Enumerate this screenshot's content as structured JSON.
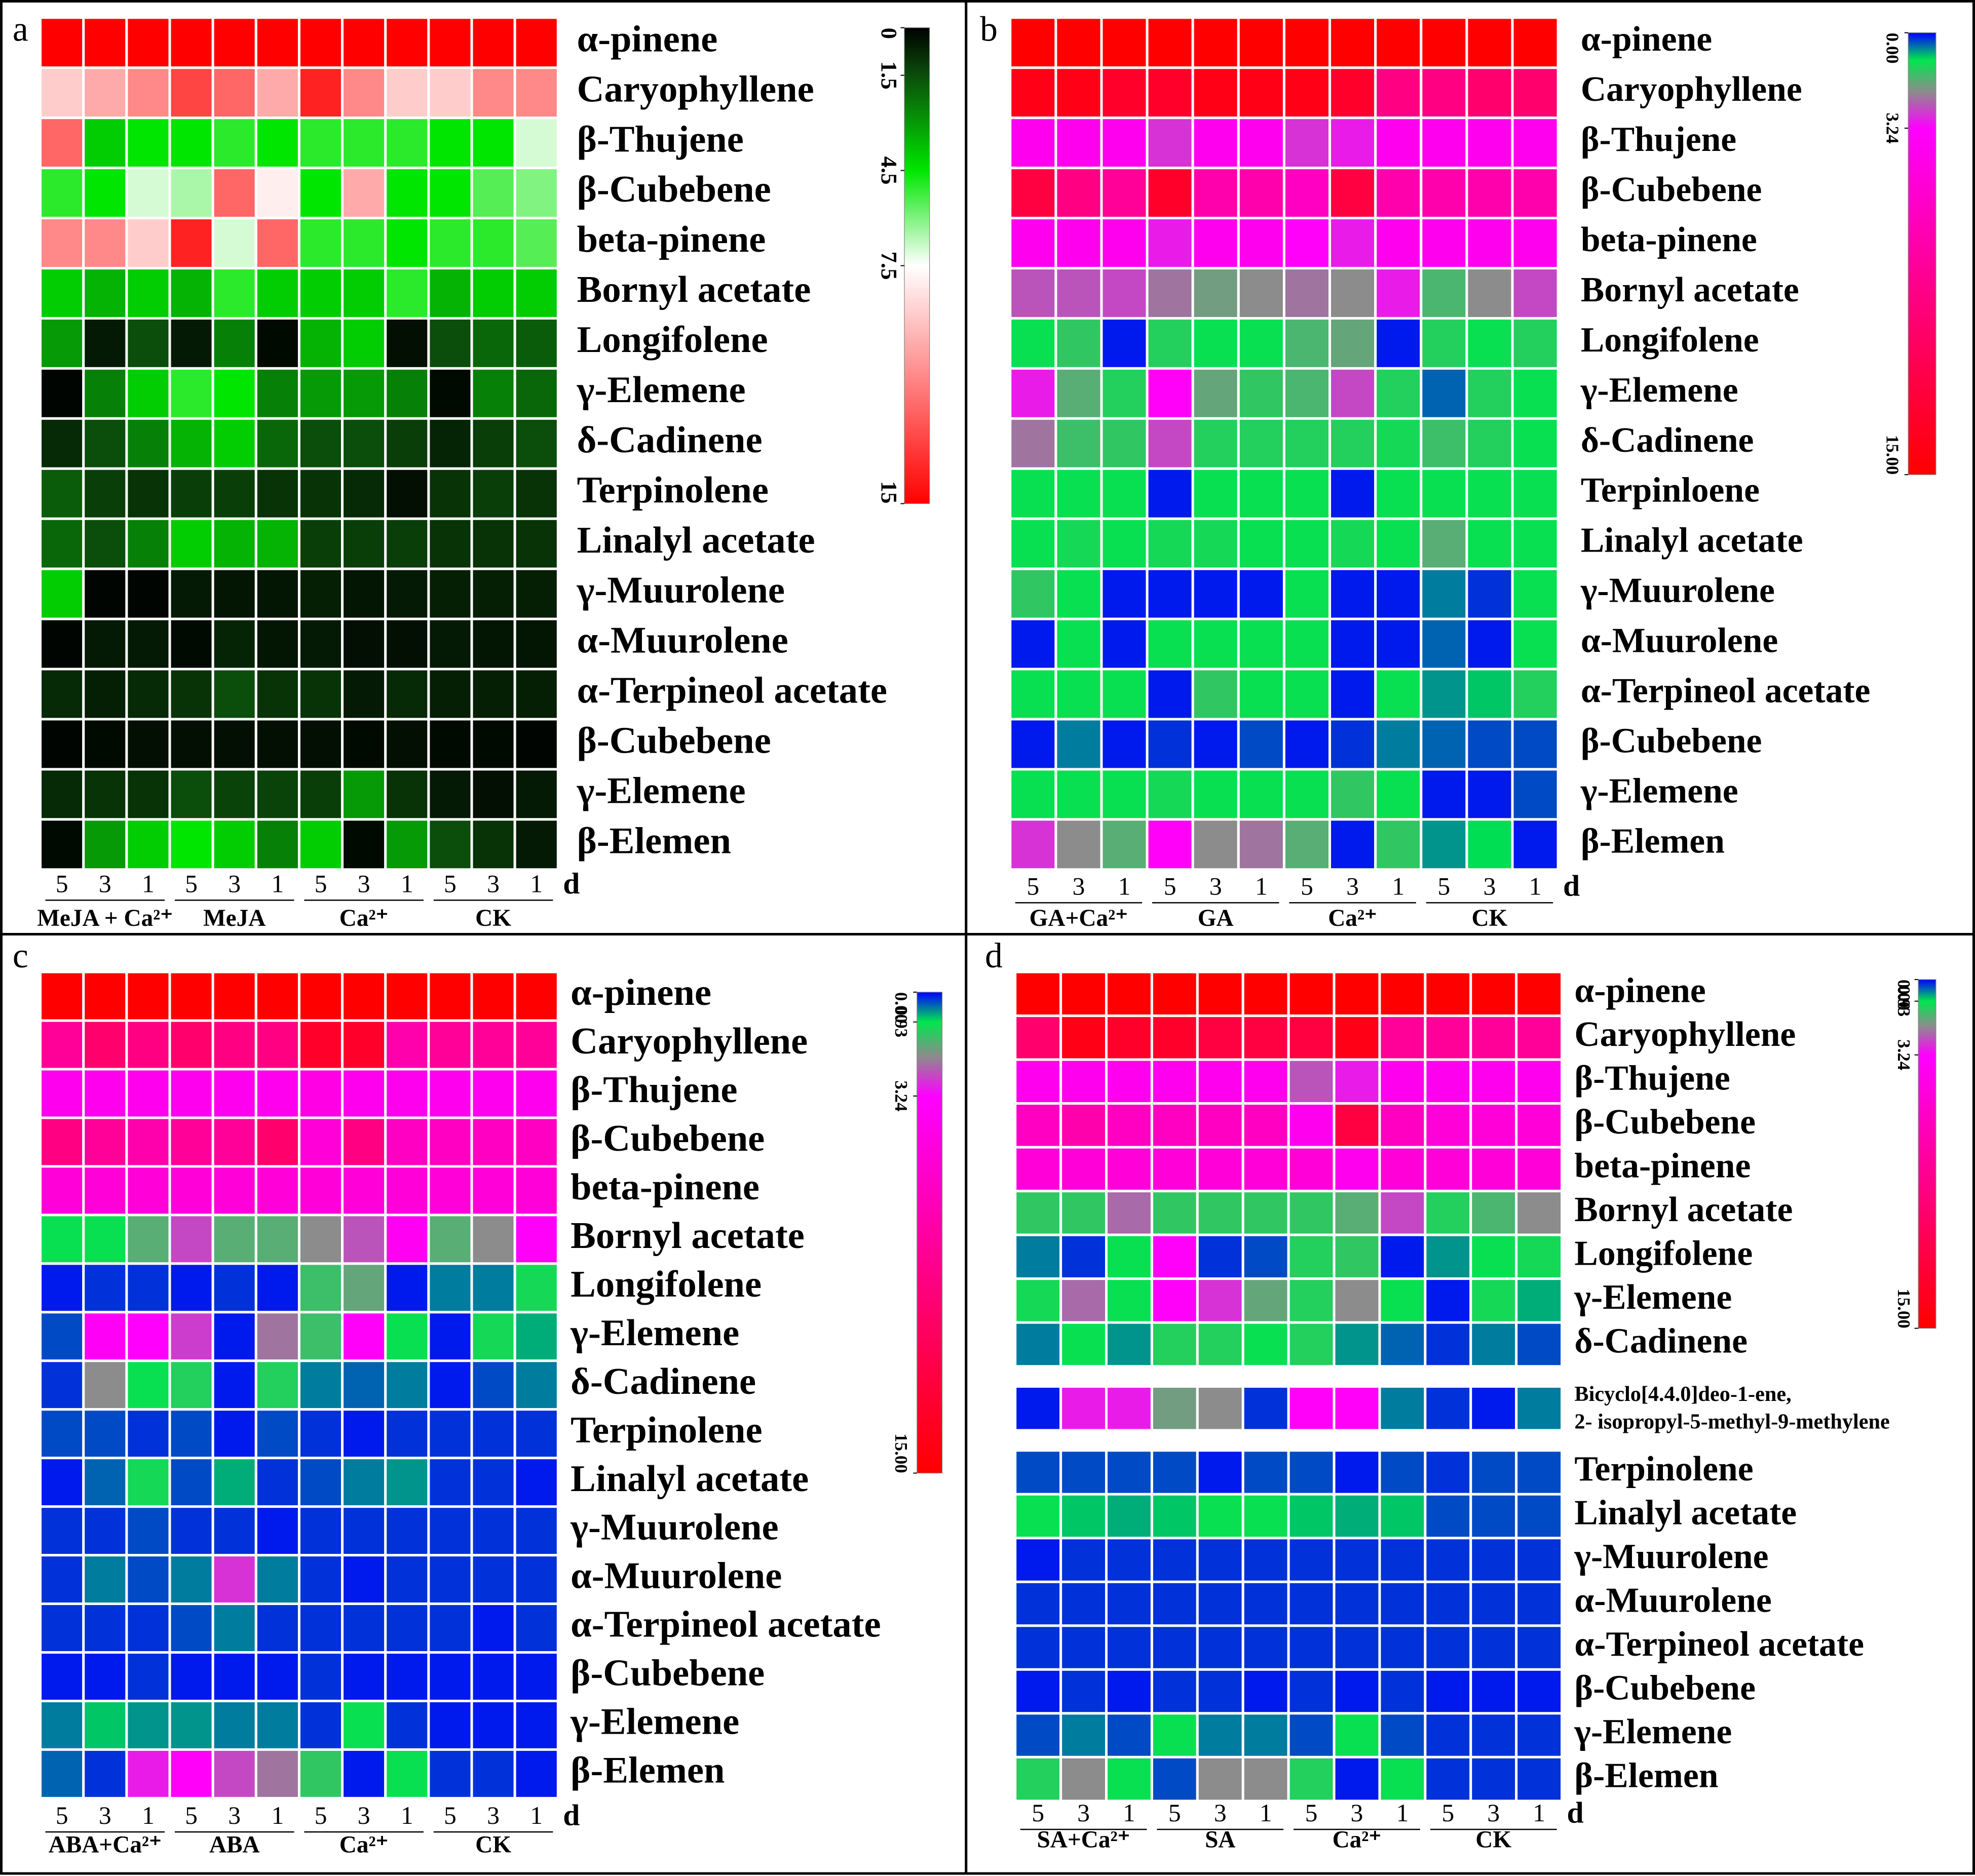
{
  "chart_data": [
    {
      "type": "heatmap",
      "panel_label": "a",
      "row_labels": [
        "α-pinene",
        "Caryophyllene",
        "β-Thujene",
        "β-Cubebene",
        "beta-pinene",
        "Bornyl acetate",
        "Longifolene",
        "γ-Elemene",
        "δ-Cadinene",
        "Terpinolene",
        "Linalyl acetate",
        "γ-Muurolene",
        "α-Muurolene",
        "α-Terpineol acetate",
        "β-Cubebene",
        "γ-Elemene",
        "β-Elemen"
      ],
      "columns": [
        "5",
        "3",
        "1",
        "5",
        "3",
        "1",
        "5",
        "3",
        "1",
        "5",
        "3",
        "1"
      ],
      "x_unit": "d",
      "groups": [
        "MeJA + Ca²⁺",
        "MeJA",
        "Ca²⁺",
        "CK"
      ],
      "values": [
        [
          15,
          15,
          15,
          15,
          15,
          15,
          15,
          15,
          15,
          15,
          15,
          15
        ],
        [
          9,
          10,
          11,
          13,
          12,
          10,
          14,
          11,
          9,
          9,
          11,
          11
        ],
        [
          12,
          4,
          4.5,
          4.5,
          5,
          4.5,
          5,
          5,
          5,
          4.5,
          4.5,
          7
        ],
        [
          5,
          4.5,
          7,
          6.5,
          12,
          8,
          4.5,
          10,
          4.5,
          4.5,
          5.5,
          6
        ],
        [
          11,
          11,
          9,
          14,
          7,
          12,
          5,
          5,
          4.5,
          5,
          5,
          5.5
        ],
        [
          4,
          3.5,
          4,
          3.5,
          5,
          4,
          4,
          4,
          5,
          3.5,
          4,
          4
        ],
        [
          3,
          0.5,
          1.5,
          0.5,
          2.5,
          0.2,
          3.5,
          4,
          0.3,
          1.5,
          2,
          1.8
        ],
        [
          0.1,
          2.5,
          4,
          5,
          4.5,
          2.5,
          3,
          3,
          2.5,
          0.2,
          2.5,
          2
        ],
        [
          0.8,
          1.5,
          2.5,
          3.5,
          4,
          2,
          1.5,
          1.5,
          1.2,
          0.7,
          1.2,
          1.5
        ],
        [
          1.8,
          1.2,
          1,
          1.2,
          1.2,
          1,
          1,
          0.8,
          0.3,
          1,
          1.2,
          1
        ],
        [
          2,
          1.5,
          2.5,
          4,
          3.5,
          3.5,
          1.2,
          1.2,
          1.2,
          1,
          1,
          1
        ],
        [
          4,
          0.1,
          0.1,
          0.5,
          0.4,
          0.4,
          0.6,
          0.4,
          0.5,
          0.6,
          0.6,
          0.6
        ],
        [
          0.1,
          0.5,
          0.5,
          0.2,
          0.7,
          0.4,
          0.5,
          0.3,
          0.3,
          0.5,
          0.4,
          0.4
        ],
        [
          0.8,
          0.6,
          0.8,
          1,
          1.5,
          1,
          1,
          0.5,
          0.8,
          0.6,
          0.6,
          0.6
        ],
        [
          0.1,
          0.2,
          0.3,
          0.3,
          0.3,
          0.3,
          0.3,
          0.2,
          0.3,
          0.2,
          0.2,
          0.1
        ],
        [
          0.8,
          1,
          1,
          1.5,
          1.3,
          1.3,
          1.2,
          3,
          1,
          0.5,
          0.3,
          0.5
        ],
        [
          0.2,
          3,
          4,
          4.5,
          4,
          2.5,
          4,
          0.2,
          3,
          1.5,
          1,
          0.5
        ]
      ],
      "colorbar_lim": [
        0,
        15
      ],
      "colorbar_ticks": [
        0,
        1.5,
        4.5,
        7.5,
        15
      ],
      "colorscale": [
        {
          "value": 0,
          "color": "#000000"
        },
        {
          "value": 1.5,
          "color": "#0b4d0b"
        },
        {
          "value": 4.5,
          "color": "#00e600"
        },
        {
          "value": 7.5,
          "color": "#ffffff"
        },
        {
          "value": 15,
          "color": "#ff0000"
        }
      ]
    },
    {
      "type": "heatmap",
      "panel_label": "b",
      "row_labels": [
        "α-pinene",
        "Caryophyllene",
        "β-Thujene",
        "β-Cubebene",
        "beta-pinene",
        "Bornyl acetate",
        "Longifolene",
        "γ-Elemene",
        "δ-Cadinene",
        "Terpinloene",
        "Linalyl acetate",
        "γ-Muurolene",
        "α-Muurolene",
        "α-Terpineol acetate",
        "β-Cubebene",
        "γ-Elemene",
        "β-Elemen"
      ],
      "columns": [
        "5",
        "3",
        "1",
        "5",
        "3",
        "1",
        "5",
        "3",
        "1",
        "5",
        "3",
        "1"
      ],
      "x_unit": "d",
      "groups": [
        "GA+Ca²⁺",
        "GA",
        "Ca²⁺",
        "CK"
      ],
      "values": [
        [
          15,
          15,
          15,
          15,
          15,
          15,
          15,
          15,
          15,
          15,
          15,
          15
        ],
        [
          14,
          14,
          13,
          13,
          14,
          14,
          14,
          13,
          9,
          9,
          10,
          10
        ],
        [
          4,
          4,
          4,
          2.8,
          4,
          4,
          2.8,
          3,
          4,
          4,
          4,
          4
        ],
        [
          12,
          9,
          8,
          13,
          7,
          7,
          6,
          12,
          7,
          7,
          7,
          7
        ],
        [
          4,
          4,
          4,
          3,
          4,
          4,
          3.5,
          3,
          4,
          4,
          4,
          4
        ],
        [
          2.5,
          2.5,
          2.6,
          2.2,
          1.8,
          2,
          2.2,
          2,
          3,
          1.5,
          2,
          2.6
        ],
        [
          1,
          1.3,
          0.1,
          1.2,
          1,
          1,
          1.5,
          1.7,
          0.1,
          1.2,
          1,
          1.2
        ],
        [
          3,
          1.6,
          1.2,
          3.5,
          1.7,
          1.3,
          1.5,
          2.6,
          1.2,
          0.4,
          1.2,
          1
        ],
        [
          2.2,
          1.4,
          1.3,
          2.6,
          1.2,
          1.2,
          1.2,
          1.2,
          1.1,
          1.4,
          1.2,
          1
        ],
        [
          1,
          1,
          1,
          0.1,
          1,
          1,
          1,
          0.1,
          1,
          1,
          1,
          1
        ],
        [
          1,
          1.1,
          1,
          1.1,
          1.1,
          1,
          1,
          1.1,
          1,
          1.6,
          1,
          1
        ],
        [
          1.3,
          1,
          0.1,
          0.1,
          0.1,
          0.1,
          1,
          0.1,
          0.1,
          0.5,
          0.2,
          1
        ],
        [
          0.1,
          1,
          0.1,
          1,
          1,
          1,
          1,
          0.1,
          0.1,
          0.4,
          0.1,
          1
        ],
        [
          1,
          1,
          1,
          0.1,
          1.3,
          1,
          1,
          0.1,
          1,
          0.6,
          0.8,
          1.2
        ],
        [
          0.1,
          0.5,
          0.1,
          0.2,
          0.1,
          0.3,
          0.1,
          0.2,
          0.5,
          0.4,
          0.3,
          0.3
        ],
        [
          1,
          1,
          1,
          1.1,
          1,
          1,
          1,
          1.3,
          1,
          0.1,
          0.1,
          0.3
        ],
        [
          2.8,
          2,
          1.6,
          3.5,
          2,
          2.2,
          1.6,
          0.1,
          1.3,
          0.6,
          0.9,
          0.1
        ]
      ],
      "colorbar_lim": [
        0,
        15
      ],
      "colorbar_ticks": [
        {
          "value": 0,
          "label": "0.00"
        },
        3.24,
        {
          "value": 15,
          "label": "15.00"
        }
      ],
      "colorscale": [
        {
          "value": 0,
          "color": "#0000ff"
        },
        {
          "value": 0.93,
          "color": "#00e64d"
        },
        {
          "value": 2,
          "color": "#8c8c8c"
        },
        {
          "value": 3.24,
          "color": "#ff00ff"
        },
        {
          "value": 15,
          "color": "#ff0000"
        }
      ]
    },
    {
      "type": "heatmap",
      "panel_label": "c",
      "row_labels": [
        "α-pinene",
        "Caryophyllene",
        "β-Thujene",
        "β-Cubebene",
        "beta-pinene",
        "Bornyl acetate",
        "Longifolene",
        "γ-Elemene",
        "δ-Cadinene",
        "Terpinolene",
        "Linalyl acetate",
        "γ-Muurolene",
        "α-Muurolene",
        "α-Terpineol acetate",
        "β-Cubebene",
        "γ-Elemene",
        "β-Elemen"
      ],
      "columns": [
        "5",
        "3",
        "1",
        "5",
        "3",
        "1",
        "5",
        "3",
        "1",
        "5",
        "3",
        "1"
      ],
      "x_unit": "d",
      "groups": [
        "ABA+Ca²⁺",
        "ABA",
        "Ca²⁺",
        "CK"
      ],
      "values": [
        [
          15,
          15,
          15,
          15,
          15,
          15,
          15,
          15,
          15,
          15,
          15,
          15
        ],
        [
          8,
          10,
          9,
          10,
          9,
          9,
          13,
          13,
          7,
          8,
          8,
          8
        ],
        [
          4,
          4,
          4,
          4,
          4,
          4,
          4.5,
          4,
          4,
          4,
          4,
          4
        ],
        [
          9,
          8,
          7,
          8,
          8,
          10,
          5,
          9,
          6,
          6,
          6,
          6
        ],
        [
          5,
          5,
          5,
          5,
          5,
          5,
          5,
          5,
          5,
          5,
          5,
          5
        ],
        [
          1,
          1,
          1.6,
          2.6,
          1.6,
          1.6,
          2,
          2.5,
          3.8,
          1.6,
          2,
          3.5
        ],
        [
          0.1,
          0.2,
          0.2,
          0.1,
          0.2,
          0.1,
          1.4,
          1.7,
          0.1,
          0.5,
          0.5,
          1.1
        ],
        [
          0.3,
          3.6,
          3.4,
          2.7,
          0.1,
          2.2,
          1.4,
          3.5,
          1,
          0.1,
          1.1,
          0.7
        ],
        [
          0.2,
          2,
          1,
          1.2,
          0.1,
          1.2,
          0.5,
          0.4,
          0.5,
          0.1,
          0.3,
          0.5
        ],
        [
          0.3,
          0.3,
          0.2,
          0.3,
          0.1,
          0.3,
          0.2,
          0.1,
          0.2,
          0.2,
          0.2,
          0.2
        ],
        [
          0.1,
          0.4,
          1.1,
          0.3,
          0.7,
          0.2,
          0.3,
          0.5,
          0.6,
          0.2,
          0.2,
          0.1
        ],
        [
          0.2,
          0.2,
          0.3,
          0.2,
          0.2,
          0.1,
          0.2,
          0.2,
          0.2,
          0.2,
          0.2,
          0.2
        ],
        [
          0.2,
          0.5,
          0.3,
          0.5,
          2.8,
          0.5,
          0.2,
          0.1,
          0.2,
          0.2,
          0.2,
          0.2
        ],
        [
          0.2,
          0.2,
          0.2,
          0.3,
          0.5,
          0.2,
          0.2,
          0.2,
          0.2,
          0.2,
          0.1,
          0.2
        ],
        [
          0.1,
          0.1,
          0.2,
          0.1,
          0.1,
          0.1,
          0.2,
          0.1,
          0.1,
          0.1,
          0.1,
          0.1
        ],
        [
          0.5,
          0.8,
          0.6,
          0.6,
          0.5,
          0.5,
          0.2,
          1,
          0.2,
          0.1,
          0.1,
          0.1
        ],
        [
          0.4,
          0.2,
          3,
          3.5,
          2.6,
          2.2,
          1.3,
          0.1,
          1,
          0.2,
          0.2,
          0.1
        ]
      ],
      "colorbar_lim": [
        0,
        15
      ],
      "colorbar_ticks": [
        {
          "value": 0,
          "label": "0.00"
        },
        0.93,
        3.24,
        {
          "value": 15,
          "label": "15.00"
        }
      ],
      "colorscale": [
        {
          "value": 0,
          "color": "#0000ff"
        },
        {
          "value": 0.93,
          "color": "#00e64d"
        },
        {
          "value": 2,
          "color": "#8c8c8c"
        },
        {
          "value": 3.24,
          "color": "#ff00ff"
        },
        {
          "value": 15,
          "color": "#ff0000"
        }
      ]
    },
    {
      "type": "heatmap",
      "panel_label": "d",
      "row_labels": [
        "α-pinene",
        "Caryophyllene",
        "β-Thujene",
        "β-Cubebene",
        "beta-pinene",
        "Bornyl acetate",
        "Longifolene",
        "γ-Elemene",
        "δ-Cadinene",
        [
          "Bicyclo[4.4.0]deo-1-ene,",
          "2- isopropyl-5-methyl-9-methylene"
        ],
        "Terpinolene",
        "Linalyl acetate",
        "γ-Muurolene",
        "α-Muurolene",
        "α-Terpineol acetate",
        "β-Cubebene",
        "γ-Elemene",
        "β-Elemen"
      ],
      "columns": [
        "5",
        "3",
        "1",
        "5",
        "3",
        "1",
        "5",
        "3",
        "1",
        "5",
        "3",
        "1"
      ],
      "x_unit": "d",
      "groups": [
        "SA+Ca²⁺",
        "SA",
        "Ca²⁺",
        "CK"
      ],
      "values": [
        [
          15,
          15,
          15,
          15,
          15,
          15,
          15,
          15,
          15,
          15,
          15,
          15
        ],
        [
          10,
          14,
          13,
          13,
          12,
          12,
          12,
          14,
          8,
          8,
          8,
          8
        ],
        [
          4,
          4,
          4,
          4,
          4,
          4,
          2.5,
          3,
          4,
          4,
          4,
          4
        ],
        [
          6,
          7,
          6,
          6,
          6,
          6,
          4,
          12,
          6,
          5,
          5,
          5
        ],
        [
          5,
          5,
          5,
          5,
          5,
          5,
          5,
          4,
          5,
          5,
          5,
          5
        ],
        [
          1.3,
          1.3,
          2.3,
          1.3,
          1.3,
          1.3,
          1.3,
          1.6,
          2.6,
          1.2,
          1.5,
          2
        ],
        [
          0.5,
          0.2,
          1,
          3.5,
          0.2,
          0.3,
          1.2,
          1.3,
          0.1,
          0.6,
          1,
          1.1
        ],
        [
          1.1,
          2.3,
          1,
          3.5,
          2.8,
          1.7,
          1.2,
          2,
          1,
          0.1,
          1.1,
          0.7
        ],
        [
          0.5,
          1,
          0.6,
          1.2,
          1.2,
          1,
          1.2,
          0.6,
          0.4,
          0.2,
          0.5,
          0.3
        ],
        [
          0.1,
          3,
          3,
          1.8,
          2,
          0.2,
          3.5,
          3.5,
          0.5,
          0.2,
          0.1,
          0.5
        ],
        [
          0.3,
          0.3,
          0.3,
          0.3,
          0.1,
          0.3,
          0.3,
          0.1,
          0.3,
          0.2,
          0.3,
          0.3
        ],
        [
          1,
          0.8,
          0.7,
          0.8,
          1,
          1,
          0.8,
          0.7,
          0.8,
          0.3,
          0.3,
          0.3
        ],
        [
          0.1,
          0.2,
          0.2,
          0.2,
          0.2,
          0.2,
          0.2,
          0.2,
          0.2,
          0.2,
          0.2,
          0.2
        ],
        [
          0.2,
          0.2,
          0.2,
          0.2,
          0.2,
          0.2,
          0.2,
          0.2,
          0.2,
          0.2,
          0.2,
          0.2
        ],
        [
          0.2,
          0.2,
          0.2,
          0.2,
          0.2,
          0.2,
          0.2,
          0.2,
          0.2,
          0.2,
          0.2,
          0.2
        ],
        [
          0.1,
          0.2,
          0.1,
          0.2,
          0.2,
          0.1,
          0.2,
          0.1,
          0.2,
          0.1,
          0.1,
          0.1
        ],
        [
          0.3,
          0.5,
          0.3,
          1,
          0.5,
          0.5,
          0.3,
          1,
          0.3,
          0.2,
          0.2,
          0.2
        ],
        [
          1.2,
          2,
          1,
          0.3,
          2,
          2,
          1.2,
          0.1,
          1,
          0.2,
          0.2,
          0.2
        ]
      ],
      "colorbar_lim": [
        0,
        15
      ],
      "colorbar_ticks": [
        {
          "value": 0,
          "label": "0.00"
        },
        0.93,
        3.24,
        {
          "value": 15,
          "label": "15.00"
        }
      ],
      "colorscale": [
        {
          "value": 0,
          "color": "#0000ff"
        },
        {
          "value": 0.93,
          "color": "#00e64d"
        },
        {
          "value": 2,
          "color": "#8c8c8c"
        },
        {
          "value": 3.24,
          "color": "#ff00ff"
        },
        {
          "value": 15,
          "color": "#ff0000"
        }
      ]
    }
  ]
}
